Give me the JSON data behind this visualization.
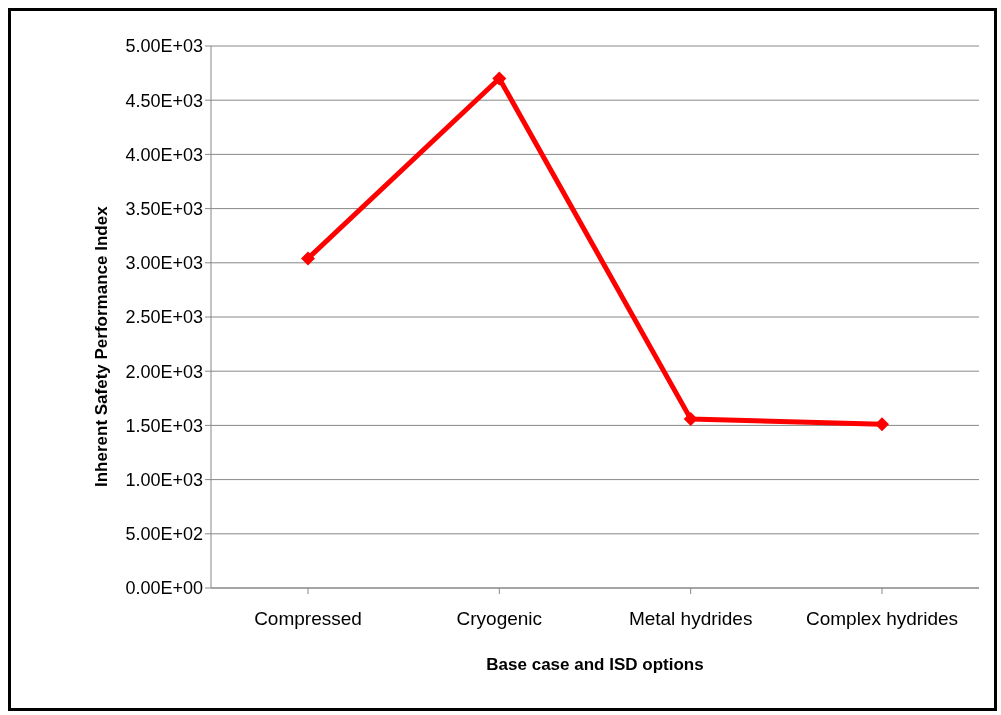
{
  "chart_data": {
    "type": "line",
    "xlabel": "Base case and ISD options",
    "ylabel": "Inherent Safety Performance Index",
    "categories": [
      "Compressed",
      "Cryogenic",
      "Metal hydrides",
      "Complex hydrides"
    ],
    "series": [
      {
        "color": "#ff0000",
        "values": [
          3040,
          4700,
          1560,
          1510
        ]
      }
    ],
    "ylim": [
      0,
      5000
    ],
    "yticks": [
      {
        "value": 0,
        "label": "0.00E+00"
      },
      {
        "value": 500,
        "label": "5.00E+02"
      },
      {
        "value": 1000,
        "label": "1.00E+03"
      },
      {
        "value": 1500,
        "label": "1.50E+03"
      },
      {
        "value": 2000,
        "label": "2.00E+03"
      },
      {
        "value": 2500,
        "label": "2.50E+03"
      },
      {
        "value": 3000,
        "label": "3.00E+03"
      },
      {
        "value": 3500,
        "label": "3.50E+03"
      },
      {
        "value": 4000,
        "label": "4.00E+03"
      },
      {
        "value": 4500,
        "label": "4.50E+03"
      },
      {
        "value": 5000,
        "label": "5.00E+03"
      }
    ],
    "grid": "y",
    "legend": false,
    "marker": "diamond",
    "line_style": "solid"
  }
}
